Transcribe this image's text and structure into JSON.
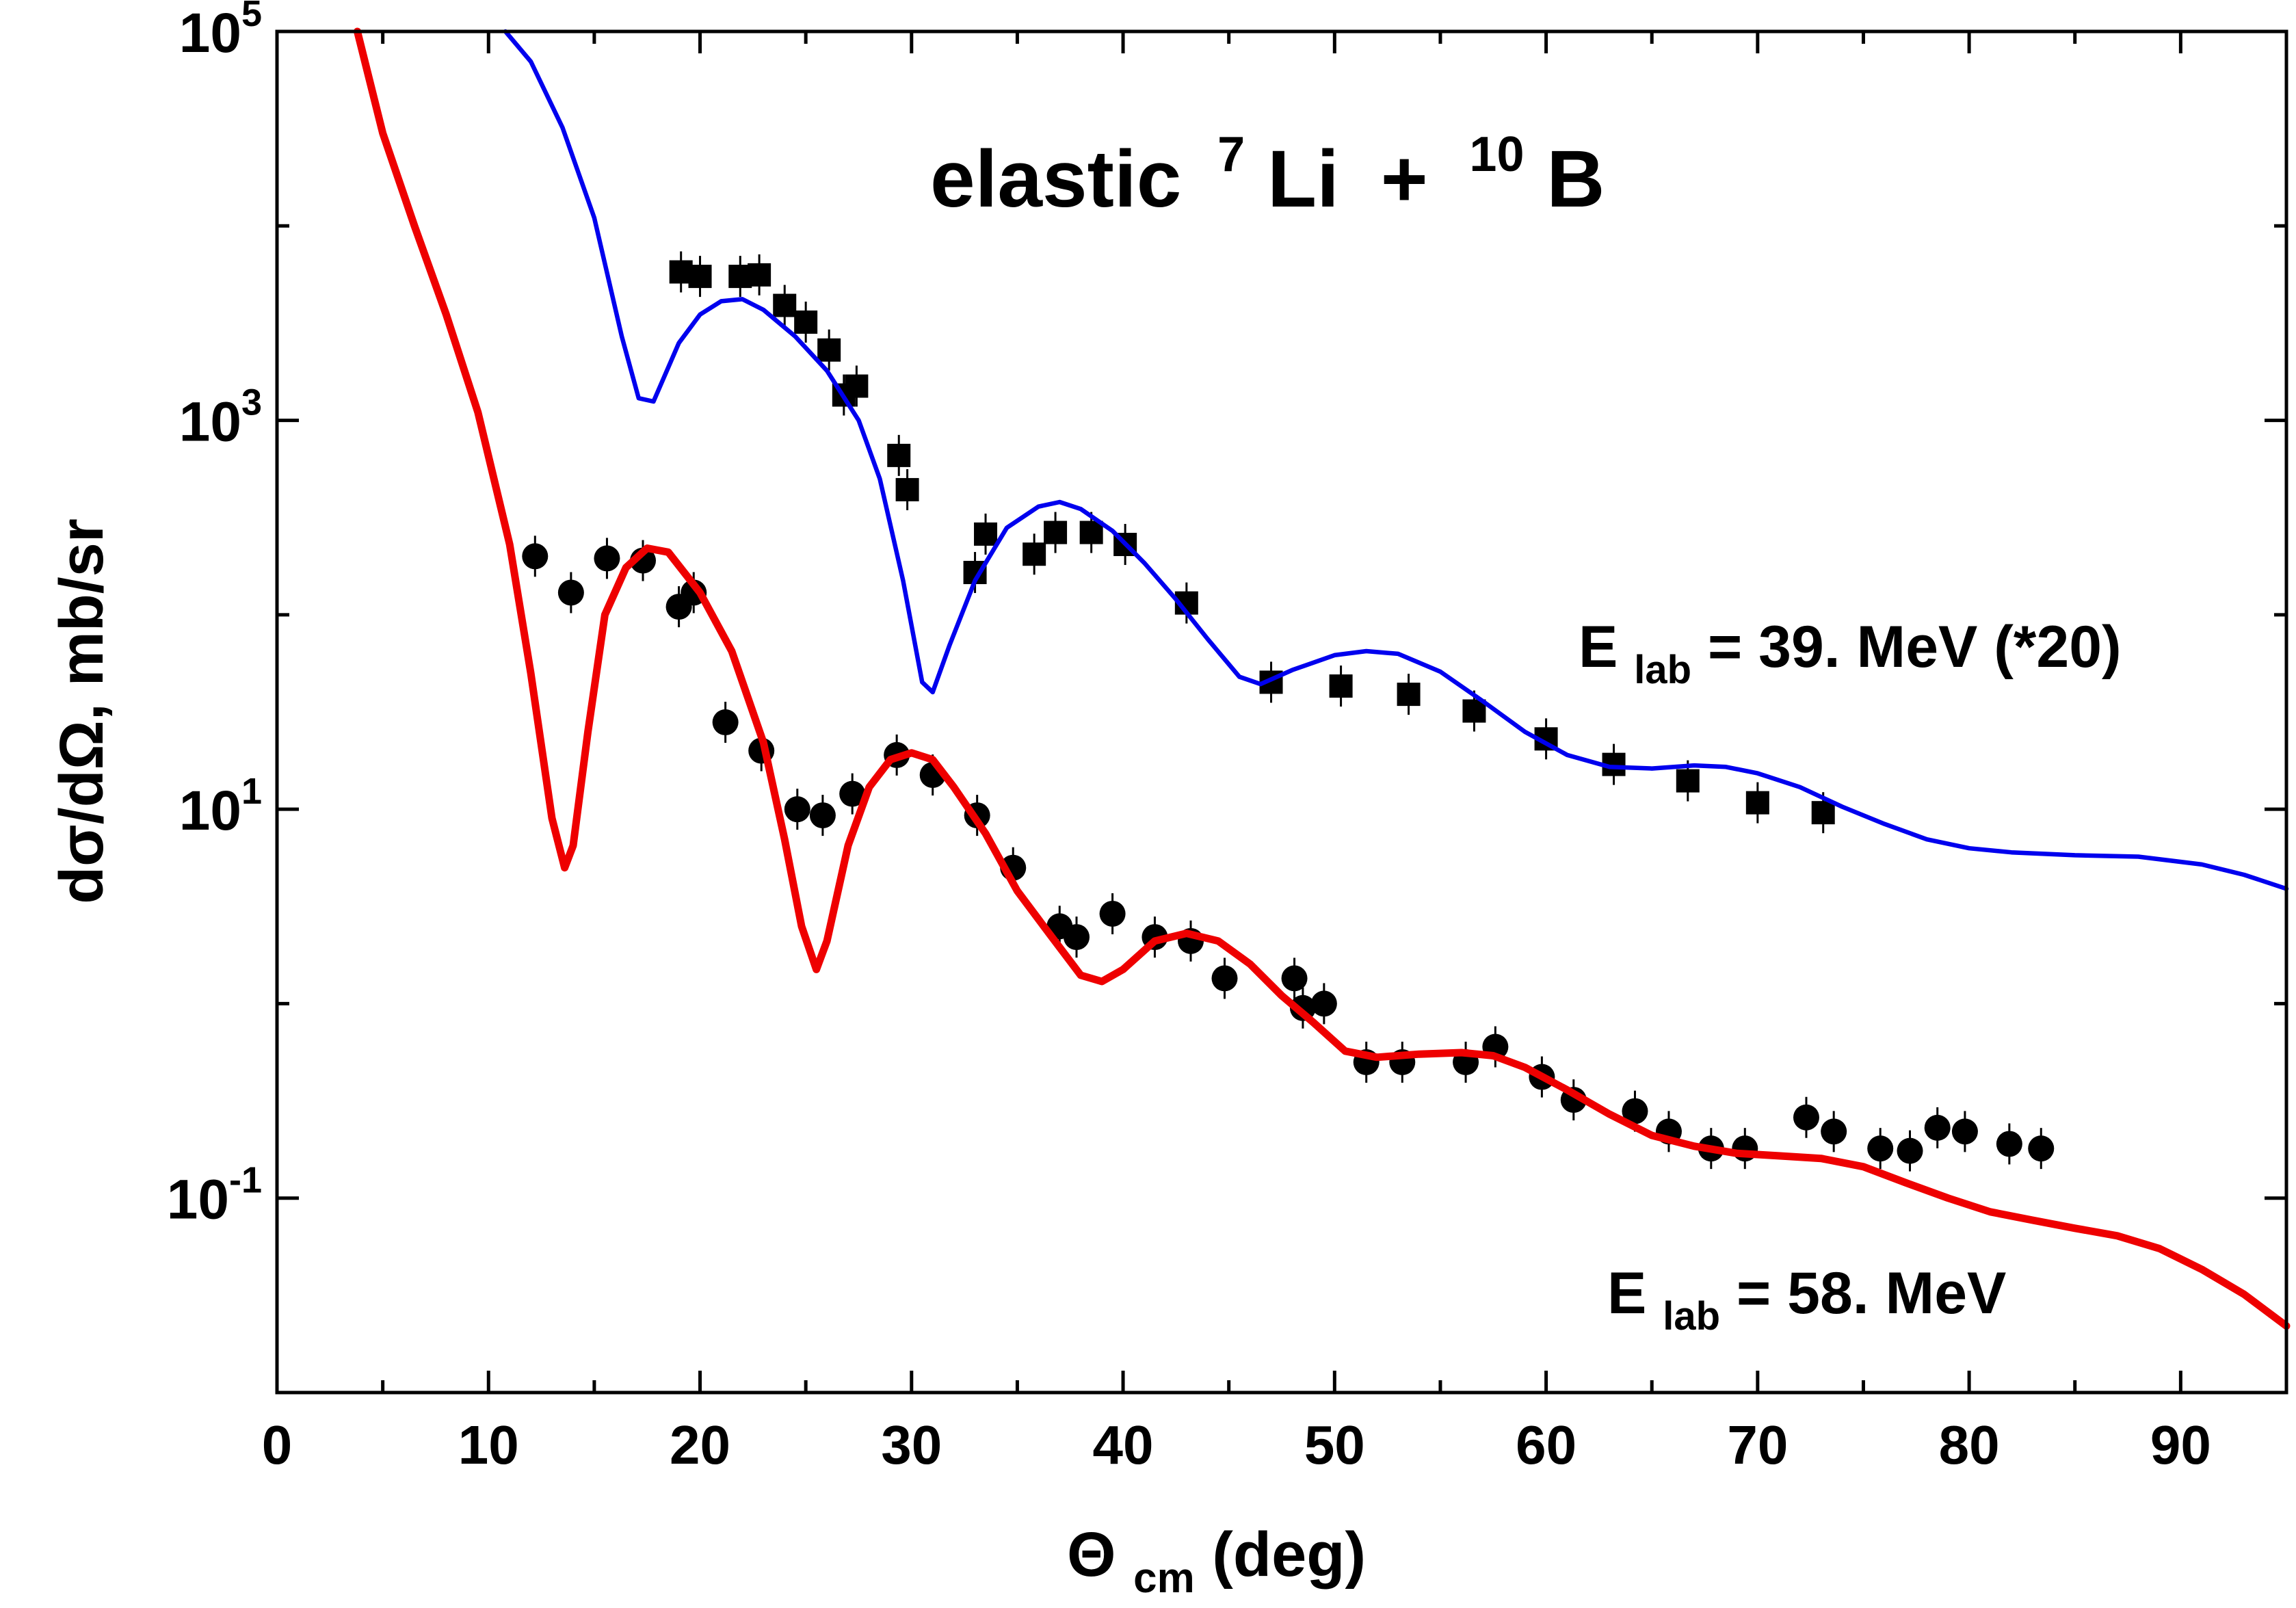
{
  "chart_data": {
    "type": "scatter",
    "title": "elastic",
    "title_reaction": {
      "projectile_mass": "7",
      "projectile": "Li",
      "plus": "+",
      "target_mass": "10",
      "target": "B"
    },
    "xlabel": {
      "main": "Θ",
      "sub": "cm",
      "rest": " (deg)"
    },
    "ylabel": "dσ/dΩ, mb/sr",
    "xlim": [
      0,
      95
    ],
    "ylim": [
      0.01,
      100000
    ],
    "yscale": "log",
    "x_ticks": [
      0,
      10,
      20,
      30,
      40,
      50,
      60,
      70,
      80,
      90
    ],
    "y_ticks": [
      {
        "base": "10",
        "exp": "5",
        "value": 100000
      },
      {
        "base": "10",
        "exp": "3",
        "value": 1000
      },
      {
        "base": "10",
        "exp": "1",
        "value": 10
      },
      {
        "base": "10",
        "exp": "-1",
        "value": 0.1
      }
    ],
    "y_minor_ticks": [
      10000,
      100,
      1,
      0.01
    ],
    "labels": {
      "e39": {
        "E": "E",
        "sub": "lab",
        "rest": " = 39. MeV (*20)"
      },
      "e58": {
        "E": "E",
        "sub": "lab",
        "rest": " = 58. MeV"
      }
    },
    "series": [
      {
        "name": "E_lab = 39. MeV (*20) data",
        "kind": "points",
        "marker": "square",
        "color": "#000000",
        "x": [
          19.1,
          20.0,
          21.9,
          22.8,
          24.0,
          25.0,
          26.1,
          26.8,
          27.4,
          29.4,
          29.8,
          33.0,
          33.5,
          35.8,
          36.8,
          38.5,
          40.1,
          43.0,
          47.0,
          50.3,
          53.5,
          56.6,
          60.0,
          63.2,
          66.7,
          70.0,
          73.1
        ],
        "y": [
          5800,
          5500,
          5500,
          5600,
          3900,
          3200,
          2300,
          1350,
          1500,
          660,
          440,
          165,
          260,
          205,
          265,
          265,
          230,
          115,
          45,
          43,
          39,
          32,
          23,
          17,
          14,
          10.8,
          9.6
        ]
      },
      {
        "name": "E_lab = 39. MeV (*20) fit",
        "kind": "line",
        "color": "#0000ee",
        "x": [
          10.8,
          12.0,
          13.5,
          15.0,
          16.3,
          17.1,
          17.8,
          19.0,
          20.0,
          21.0,
          22.0,
          23.0,
          24.5,
          26.0,
          27.5,
          28.5,
          29.6,
          30.5,
          31.0,
          31.8,
          33.0,
          34.5,
          36.0,
          37.0,
          38.0,
          39.5,
          41.0,
          42.5,
          44.0,
          45.5,
          46.5,
          48.0,
          50.0,
          51.5,
          53.0,
          55.0,
          57.0,
          59.0,
          61.0,
          63.0,
          65.0,
          67.0,
          68.5,
          70.0,
          72.0,
          74.0,
          76.0,
          78.0,
          80.0,
          82.0,
          85.0,
          88.0,
          91.0,
          93.0,
          95.0
        ],
        "y": [
          100000,
          70000,
          32000,
          11000,
          2700,
          1300,
          1250,
          2500,
          3500,
          4100,
          4200,
          3700,
          2700,
          1800,
          1000,
          500,
          150,
          45,
          40,
          70,
          150,
          280,
          360,
          380,
          350,
          270,
          185,
          120,
          75,
          48,
          44,
          52,
          62,
          65,
          63,
          51,
          36,
          25,
          19,
          16.5,
          16.2,
          16.8,
          16.5,
          15.3,
          13,
          10.3,
          8.4,
          7.0,
          6.3,
          6.0,
          5.8,
          5.7,
          5.2,
          4.6,
          3.9
        ]
      },
      {
        "name": "E_lab = 58. MeV data",
        "kind": "points",
        "marker": "circle",
        "color": "#000000",
        "x": [
          12.2,
          13.9,
          15.6,
          17.3,
          19.0,
          19.7,
          21.2,
          22.9,
          24.6,
          25.8,
          27.2,
          29.3,
          31.0,
          33.1,
          34.8,
          37.0,
          37.8,
          39.5,
          41.5,
          43.2,
          44.8,
          48.1,
          48.5,
          49.5,
          51.5,
          53.2,
          56.2,
          57.6,
          59.8,
          61.3,
          64.2,
          65.8,
          67.8,
          69.4,
          72.3,
          73.6,
          75.8,
          77.2,
          78.5,
          79.8,
          81.9,
          83.4
        ],
        "y": [
          200,
          130,
          195,
          190,
          110,
          130,
          28,
          20,
          10,
          9.3,
          12,
          19,
          15,
          9.3,
          5,
          2.5,
          2.2,
          2.9,
          2.2,
          2.1,
          1.35,
          1.35,
          0.95,
          1.0,
          0.5,
          0.5,
          0.5,
          0.6,
          0.42,
          0.32,
          0.28,
          0.22,
          0.18,
          0.18,
          0.26,
          0.22,
          0.18,
          0.175,
          0.23,
          0.22,
          0.19,
          0.18
        ]
      },
      {
        "name": "E_lab = 58. MeV fit",
        "kind": "line",
        "color": "#ee0000",
        "x": [
          3.8,
          5.0,
          6.5,
          8.0,
          9.5,
          11.0,
          12.0,
          13.0,
          13.6,
          14.0,
          14.7,
          15.5,
          16.5,
          17.5,
          18.5,
          20.0,
          21.5,
          23.0,
          24.0,
          24.8,
          25.5,
          26.0,
          27.0,
          28.0,
          29.0,
          30.0,
          31.0,
          32.0,
          33.5,
          35.0,
          36.5,
          38.0,
          39.0,
          40.0,
          41.5,
          43.0,
          44.5,
          46.0,
          47.5,
          49.0,
          50.5,
          52.0,
          54.0,
          56.0,
          57.5,
          59.0,
          61.0,
          63.0,
          65.0,
          67.0,
          69.0,
          71.0,
          73.0,
          75.0,
          77.0,
          79.0,
          81.0,
          83.0,
          85.0,
          87.0,
          89.0,
          91.0,
          93.0,
          95.0
        ],
        "y": [
          100000,
          30000,
          10000,
          3500,
          1100,
          230,
          50,
          9,
          5,
          6.5,
          25,
          100,
          175,
          220,
          210,
          130,
          65,
          22,
          7,
          2.5,
          1.5,
          2.1,
          6.5,
          13,
          18,
          19.5,
          18,
          13,
          7.5,
          3.8,
          2.3,
          1.4,
          1.3,
          1.5,
          2.1,
          2.3,
          2.1,
          1.6,
          1.1,
          0.8,
          0.57,
          0.53,
          0.55,
          0.56,
          0.54,
          0.47,
          0.36,
          0.27,
          0.21,
          0.185,
          0.17,
          0.165,
          0.16,
          0.145,
          0.12,
          0.1,
          0.085,
          0.077,
          0.07,
          0.064,
          0.055,
          0.043,
          0.032,
          0.022
        ]
      }
    ]
  }
}
